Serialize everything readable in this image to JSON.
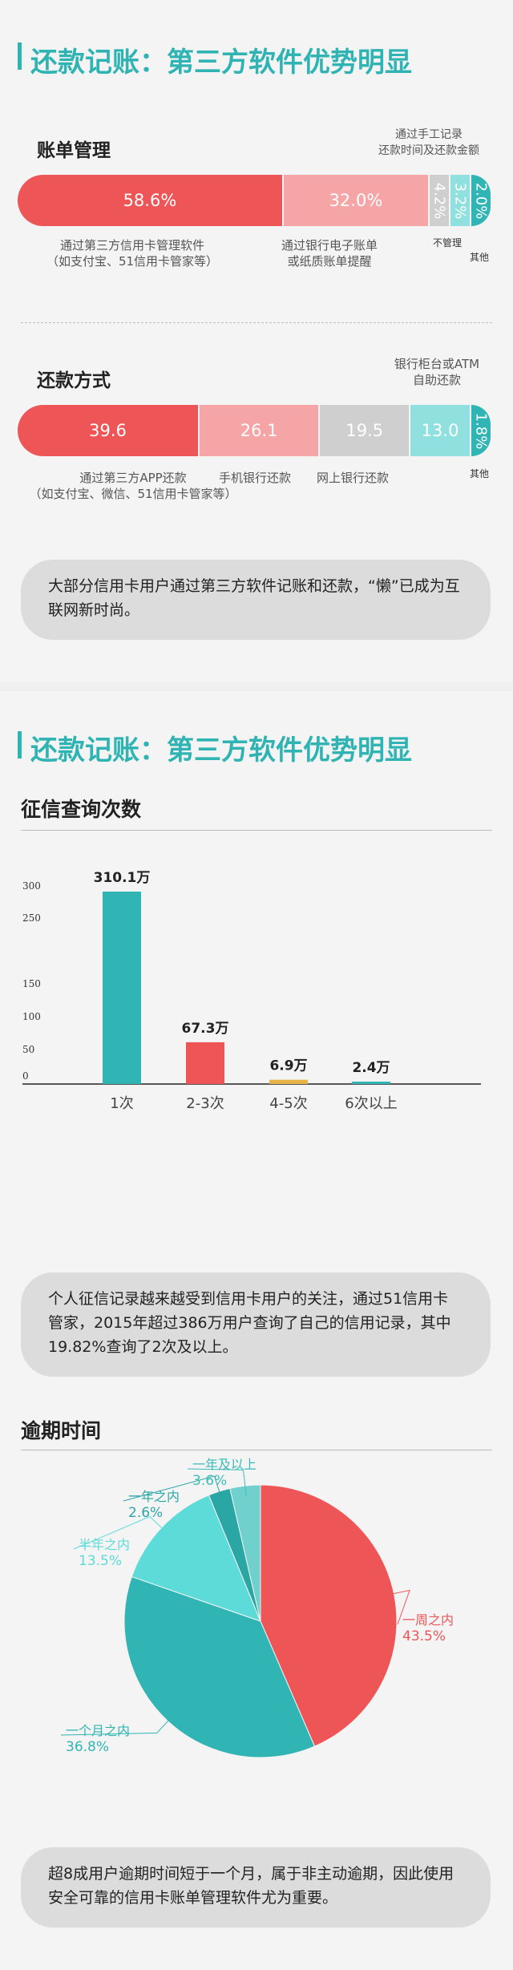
{
  "section1": {
    "title": "还款记账：第三方软件优势明显",
    "billing": {
      "title": "账单管理",
      "segments": [
        {
          "label": "58.6%",
          "value": 58.6,
          "color": "#ee5557"
        },
        {
          "label": "32.0%",
          "value": 32.0,
          "color": "#f5a5a6"
        },
        {
          "label": "4.2%",
          "value": 4.2,
          "color": "#cfcfcf"
        },
        {
          "label": "3.2%",
          "value": 3.2,
          "color": "#8fe0df"
        },
        {
          "label": "2.0%",
          "value": 2.0,
          "color": "#30b5b4"
        }
      ],
      "captions": {
        "third_party": "通过第三方信用卡管理软件\n（如支付宝、51信用卡管家等）",
        "bank": "通过银行电子账单\n或纸质账单提醒",
        "manual": "通过手工记录\n还款时间及还款金额",
        "none": "不管理",
        "other": "其他"
      }
    },
    "repayment": {
      "title": "还款方式",
      "segments": [
        {
          "label": "39.6",
          "value": 39.6,
          "color": "#ee5557"
        },
        {
          "label": "26.1",
          "value": 26.1,
          "color": "#f5a5a6"
        },
        {
          "label": "19.5",
          "value": 19.5,
          "color": "#cfcfcf"
        },
        {
          "label": "13.0",
          "value": 13.0,
          "color": "#8fe0df"
        },
        {
          "label": "1.8%",
          "value": 1.8,
          "color": "#30b5b4"
        }
      ],
      "captions": {
        "app": "通过第三方APP还款\n（如支付宝、微信、51信用卡管家等）",
        "mobile": "手机银行还款",
        "online": "网上银行还款",
        "atm": "银行柜台或ATM\n自助还款",
        "other": "其他"
      }
    },
    "note": "大部分信用卡用户通过第三方软件记账和还款，“懒”已成为互联网新时尚。"
  },
  "section2": {
    "title": "还款记账：第三方软件优势明显",
    "credit_query": {
      "title": "征信查询次数",
      "y_ticks": [
        "0",
        "50",
        "100",
        "150",
        "250",
        "300"
      ],
      "unit": "万",
      "categories": [
        "1次",
        "2-3次",
        "4-5次",
        "6次以上"
      ],
      "values": [
        310.1,
        67.3,
        6.9,
        2.4
      ],
      "value_labels": [
        "310.1万",
        "67.3万",
        "6.9万",
        "2.4万"
      ],
      "colors": [
        "#30b5b4",
        "#ee5557",
        "#e8b44a",
        "#30b5b4"
      ]
    },
    "note": "个人征信记录越来越受到信用卡用户的关注，通过51信用卡管家，2015年超过386万用户查询了自己的信用记录，其中19.82%查询了2次及以上。",
    "overdue": {
      "title": "逾期时间",
      "slices": [
        {
          "name": "一周之内",
          "label": "43.5%",
          "value": 43.5,
          "color": "#ee5557",
          "text_color": "#ee5557"
        },
        {
          "name": "一个月之内",
          "label": "36.8%",
          "value": 36.8,
          "color": "#30b5b4",
          "text_color": "#30b5b4"
        },
        {
          "name": "半年之内",
          "label": "13.5%",
          "value": 13.5,
          "color": "#5ddbd8",
          "text_color": "#5ddbd8"
        },
        {
          "name": "一年之内",
          "label": "2.6%",
          "value": 2.6,
          "color": "#2aa6a5",
          "text_color": "#2aa6a5"
        },
        {
          "name": "一年及以上",
          "label": "3.6%",
          "value": 3.6,
          "color": "#6fd0cc",
          "text_color": "#3cbcb8"
        }
      ]
    },
    "note2": "超8成用户逾期时间短于一个月，属于非主动逾期，因此使用安全可靠的信用卡账单管理软件尤为重要。"
  },
  "chart_data": [
    {
      "type": "bar",
      "title": "账单管理",
      "categories": [
        "通过第三方信用卡管理软件（如支付宝、51信用卡管家等）",
        "通过银行电子账单或纸质账单提醒",
        "不管理",
        "通过手工记录还款时间及还款金额",
        "其他"
      ],
      "values": [
        58.6,
        32.0,
        4.2,
        3.2,
        2.0
      ]
    },
    {
      "type": "bar",
      "title": "还款方式",
      "categories": [
        "通过第三方APP还款（如支付宝、微信、51信用卡管家等）",
        "手机银行还款",
        "网上银行还款",
        "银行柜台或ATM自助还款",
        "其他"
      ],
      "values": [
        39.6,
        26.1,
        19.5,
        13.0,
        1.8
      ]
    },
    {
      "type": "bar",
      "title": "征信查询次数",
      "categories": [
        "1次",
        "2-3次",
        "4-5次",
        "6次以上"
      ],
      "values": [
        310.1,
        67.3,
        6.9,
        2.4
      ],
      "ylim": [
        0,
        300
      ],
      "grid": false
    },
    {
      "type": "pie",
      "title": "逾期时间",
      "categories": [
        "一周之内",
        "一个月之内",
        "半年之内",
        "一年之内",
        "一年及以上"
      ],
      "values": [
        43.5,
        36.8,
        13.5,
        2.6,
        3.6
      ]
    }
  ]
}
